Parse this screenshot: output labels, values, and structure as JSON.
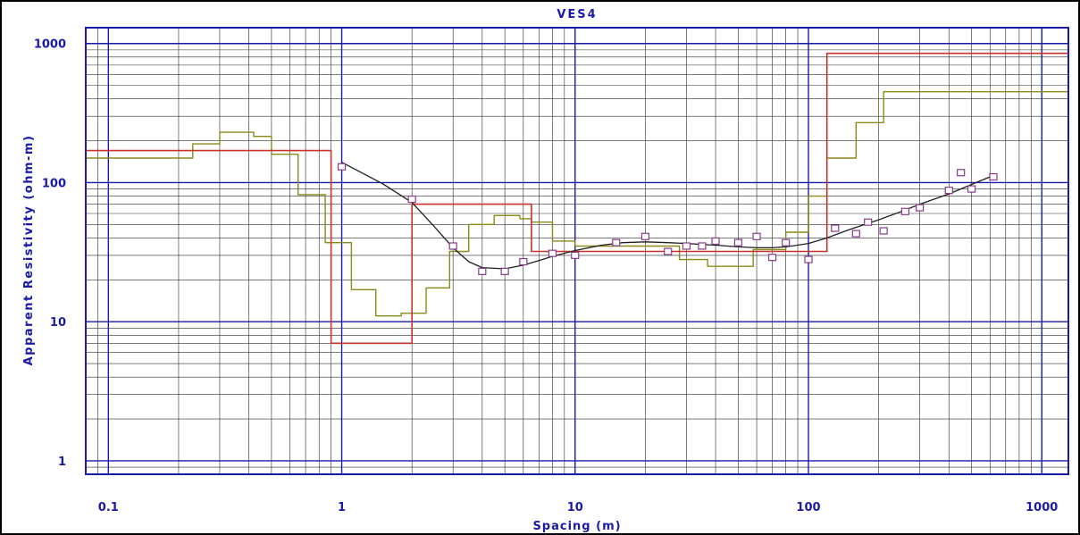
{
  "chart_data": {
    "type": "line",
    "title": "VES4",
    "xlabel": "Spacing (m)",
    "ylabel": "Apparent Resistivity (ohm-m)",
    "x_scale": "log",
    "y_scale": "log",
    "xlim": [
      0.08,
      1300
    ],
    "ylim": [
      0.8,
      1300
    ],
    "x_ticks": [
      0.1,
      1,
      10,
      100,
      1000
    ],
    "x_tick_labels": [
      "0.1",
      "1",
      "10",
      "100",
      "1000"
    ],
    "y_ticks": [
      1,
      10,
      100,
      1000
    ],
    "y_tick_labels": [
      "1",
      "10",
      "100",
      "1000"
    ],
    "grid": true,
    "colors": {
      "axis": "#1a1aa8",
      "minor_grid": "#2a2a2a",
      "layered_model": "#c8322a",
      "equivalence_model": "#8a8a1a",
      "calculated_curve": "#1e1e1e",
      "observed": "#8a3a8a"
    },
    "series": [
      {
        "role": "observed",
        "marker": "square",
        "x": [
          1,
          2,
          3,
          4,
          5,
          6,
          8,
          10,
          15,
          20,
          25,
          30,
          35,
          40,
          50,
          60,
          70,
          80,
          100,
          130,
          160,
          180,
          210,
          260,
          300,
          400,
          450,
          500,
          620
        ],
        "y": [
          130,
          76,
          35,
          23,
          23,
          27,
          31,
          30,
          37,
          41,
          32,
          35,
          35,
          38,
          37,
          41,
          29,
          37,
          28,
          47,
          43,
          52,
          45,
          62,
          66,
          88,
          118,
          90,
          110
        ]
      },
      {
        "role": "calculated",
        "x": [
          1,
          1.5,
          2,
          2.5,
          3,
          3.5,
          4,
          5,
          6,
          7,
          8,
          10,
          13,
          16,
          20,
          25,
          30,
          40,
          50,
          60,
          70,
          80,
          100,
          120,
          150,
          200,
          250,
          300,
          400,
          500,
          600
        ],
        "y": [
          140,
          98,
          72,
          48,
          34,
          27,
          24.5,
          24,
          25.5,
          27.5,
          29.5,
          32.5,
          35.5,
          37,
          37.5,
          37,
          36.5,
          35.5,
          34.5,
          34,
          34,
          34.5,
          36.5,
          40,
          46,
          54,
          62,
          70,
          83,
          97,
          110
        ]
      },
      {
        "role": "layered-model",
        "x": [
          0.08,
          0.9,
          0.9,
          2,
          2,
          6.5,
          6.5,
          120,
          120,
          1300
        ],
        "y": [
          170,
          170,
          7,
          7,
          70,
          70,
          32,
          32,
          850,
          850
        ]
      },
      {
        "role": "equivalence-model",
        "x": [
          0.08,
          0.23,
          0.23,
          0.3,
          0.3,
          0.42,
          0.42,
          0.5,
          0.5,
          0.65,
          0.65,
          0.85,
          0.85,
          1.1,
          1.1,
          1.4,
          1.4,
          1.8,
          1.8,
          2.3,
          2.3,
          2.9,
          2.9,
          3.5,
          3.5,
          4.5,
          4.5,
          5.8,
          5.8,
          6.5,
          6.5,
          8,
          8,
          10,
          10,
          28,
          28,
          37,
          37,
          58,
          58,
          80,
          80,
          100,
          100,
          120,
          120,
          160,
          160,
          210,
          210,
          1300
        ],
        "y": [
          150,
          150,
          190,
          190,
          230,
          230,
          215,
          215,
          160,
          160,
          82,
          82,
          37,
          37,
          17,
          17,
          11,
          11,
          11.5,
          11.5,
          17.5,
          17.5,
          32,
          32,
          50,
          50,
          58,
          58,
          55,
          55,
          52,
          52,
          38,
          38,
          35,
          35,
          28,
          28,
          25,
          25,
          33,
          33,
          44,
          44,
          80,
          80,
          150,
          150,
          270,
          270,
          450,
          450
        ]
      }
    ]
  }
}
